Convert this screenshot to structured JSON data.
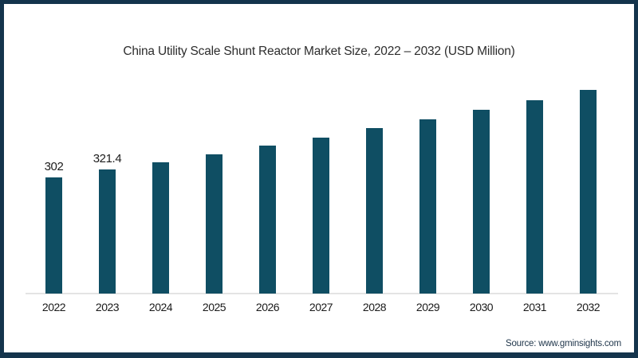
{
  "chart_data": {
    "type": "bar",
    "title": "China Utility Scale Shunt Reactor Market Size, 2022 – 2032 (USD Million)",
    "categories": [
      "2022",
      "2023",
      "2024",
      "2025",
      "2026",
      "2027",
      "2028",
      "2029",
      "2030",
      "2031",
      "2032"
    ],
    "values": [
      302,
      321.4,
      341,
      362,
      383,
      405,
      429,
      452,
      477,
      502,
      528
    ],
    "data_labels": [
      "302",
      "321.4",
      "",
      "",
      "",
      "",
      "",
      "",
      "",
      "",
      ""
    ],
    "xlabel": "",
    "ylabel": "",
    "ylim": [
      0,
      545
    ],
    "bar_color": "#0f4e63",
    "grid": "off",
    "legend": "none"
  },
  "source": {
    "label": "Source: www.gminsights.com"
  },
  "colors": {
    "bar": "#0f4e63",
    "frame_border": "#14344c",
    "axis_line": "#e4e4e4",
    "title_text": "#2d2d2d",
    "label_text": "#1a1a1a",
    "source_text": "#22384d"
  }
}
